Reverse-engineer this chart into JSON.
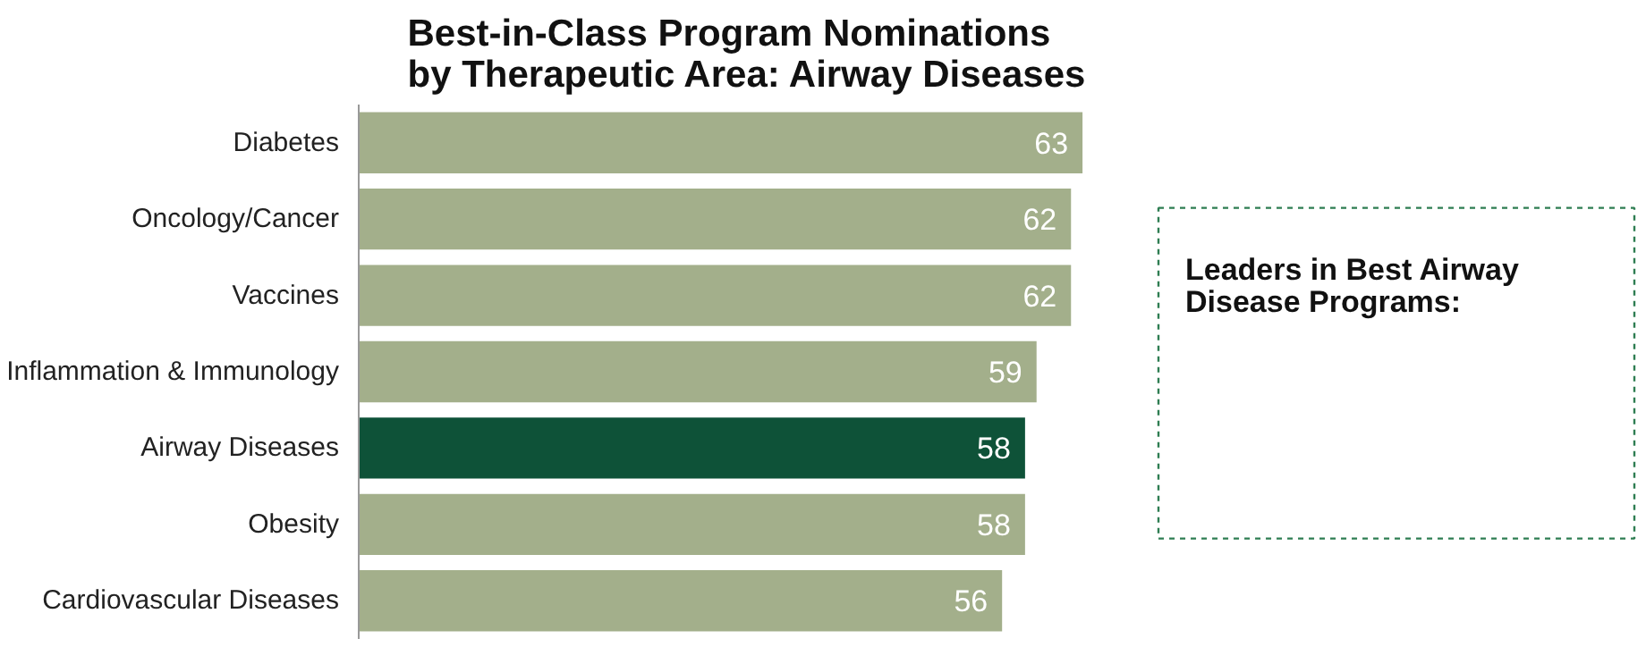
{
  "chart_data": {
    "type": "bar",
    "orientation": "horizontal",
    "title": "Best-in-Class Program Nominations\nby Therapeutic Area: Airway Diseases",
    "categories": [
      "Diabetes",
      "Oncology/Cancer",
      "Vaccines",
      "Inflammation & Immunology",
      "Airway Diseases",
      "Obesity",
      "Cardiovascular Diseases"
    ],
    "values": [
      63,
      62,
      62,
      59,
      58,
      58,
      56
    ],
    "colors": [
      "#a3af8b",
      "#a3af8b",
      "#a3af8b",
      "#a3af8b",
      "#0e5238",
      "#a3af8b",
      "#a3af8b"
    ],
    "data_labels": true,
    "annotations": [
      "Leaders in Best Airway Disease Programs:"
    ]
  }
}
